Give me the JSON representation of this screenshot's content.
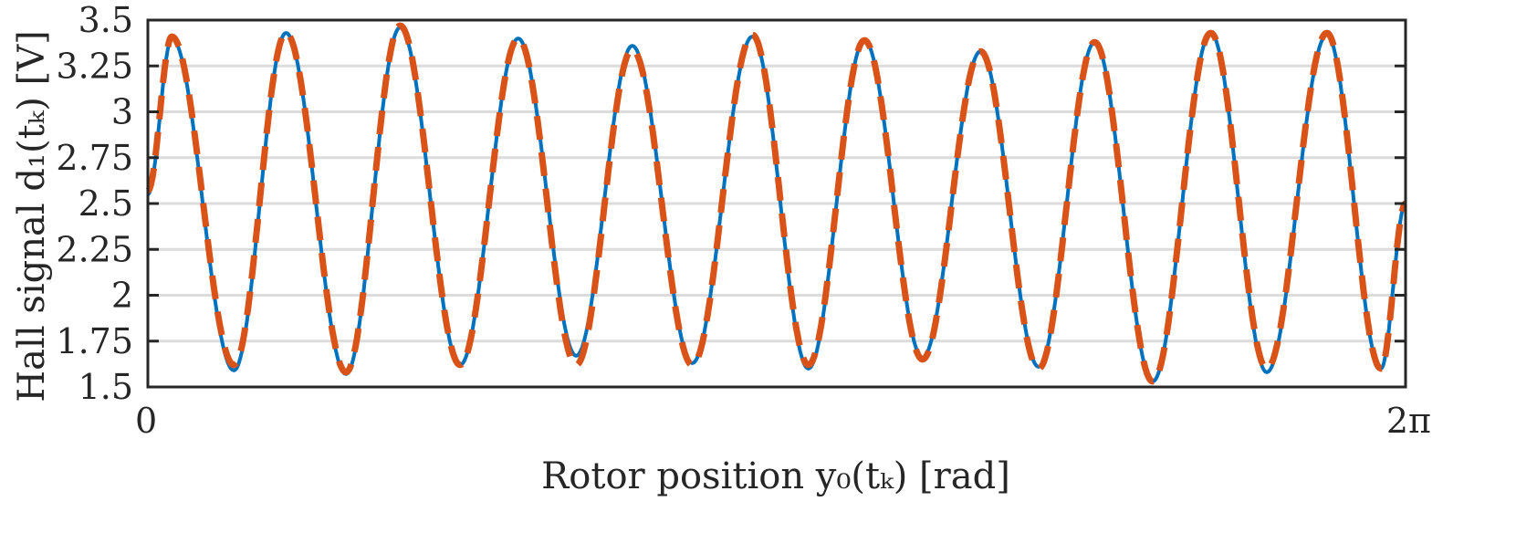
{
  "chart_data": {
    "type": "line",
    "xlabel": "Rotor position y₀(tₖ) [rad]",
    "ylabel": "Hall signal d₁(tₖ) [V]",
    "xlim": [
      0,
      6.2832
    ],
    "ylim": [
      1.5,
      3.5
    ],
    "grid": "horizontal",
    "x_ticks": [
      {
        "value": 0,
        "label": "0"
      },
      {
        "value": 6.2832,
        "label": "2π"
      }
    ],
    "y_ticks": [
      {
        "value": 1.5,
        "label": "1.5"
      },
      {
        "value": 1.75,
        "label": "1.75"
      },
      {
        "value": 2.0,
        "label": "2"
      },
      {
        "value": 2.25,
        "label": "2.25"
      },
      {
        "value": 2.5,
        "label": "2.5"
      },
      {
        "value": 2.75,
        "label": "2.75"
      },
      {
        "value": 3.0,
        "label": "3"
      },
      {
        "value": 3.25,
        "label": "3.25"
      },
      {
        "value": 3.5,
        "label": "3.5"
      }
    ],
    "series": [
      {
        "style": "solid",
        "color": "#0072BD",
        "x": [
          0,
          0.12,
          0.43,
          0.69,
          0.99,
          1.26,
          1.56,
          1.85,
          2.14,
          2.42,
          2.72,
          3.02,
          3.3,
          3.58,
          3.87,
          4.16,
          4.45,
          4.73,
          5.02,
          5.31,
          5.59,
          5.89,
          6.16,
          6.2832
        ],
        "y": [
          2.55,
          3.4,
          1.59,
          3.43,
          1.57,
          3.46,
          1.62,
          3.4,
          1.67,
          3.36,
          1.63,
          3.41,
          1.6,
          3.39,
          1.66,
          3.33,
          1.61,
          3.38,
          1.53,
          3.43,
          1.58,
          3.42,
          1.6,
          2.5
        ]
      },
      {
        "style": "dashed",
        "color": "#D95319",
        "x": [
          0,
          0.12,
          0.43,
          0.69,
          0.99,
          1.26,
          1.56,
          1.85,
          2.14,
          2.42,
          2.72,
          3.02,
          3.3,
          3.58,
          3.87,
          4.16,
          4.45,
          4.73,
          5.02,
          5.31,
          5.59,
          5.89,
          6.16,
          6.2832
        ],
        "y": [
          2.57,
          3.41,
          1.62,
          3.43,
          1.58,
          3.47,
          1.62,
          3.4,
          1.62,
          3.34,
          1.62,
          3.42,
          1.62,
          3.39,
          1.65,
          3.33,
          1.6,
          3.38,
          1.53,
          3.43,
          1.6,
          3.43,
          1.6,
          2.5
        ]
      }
    ]
  }
}
